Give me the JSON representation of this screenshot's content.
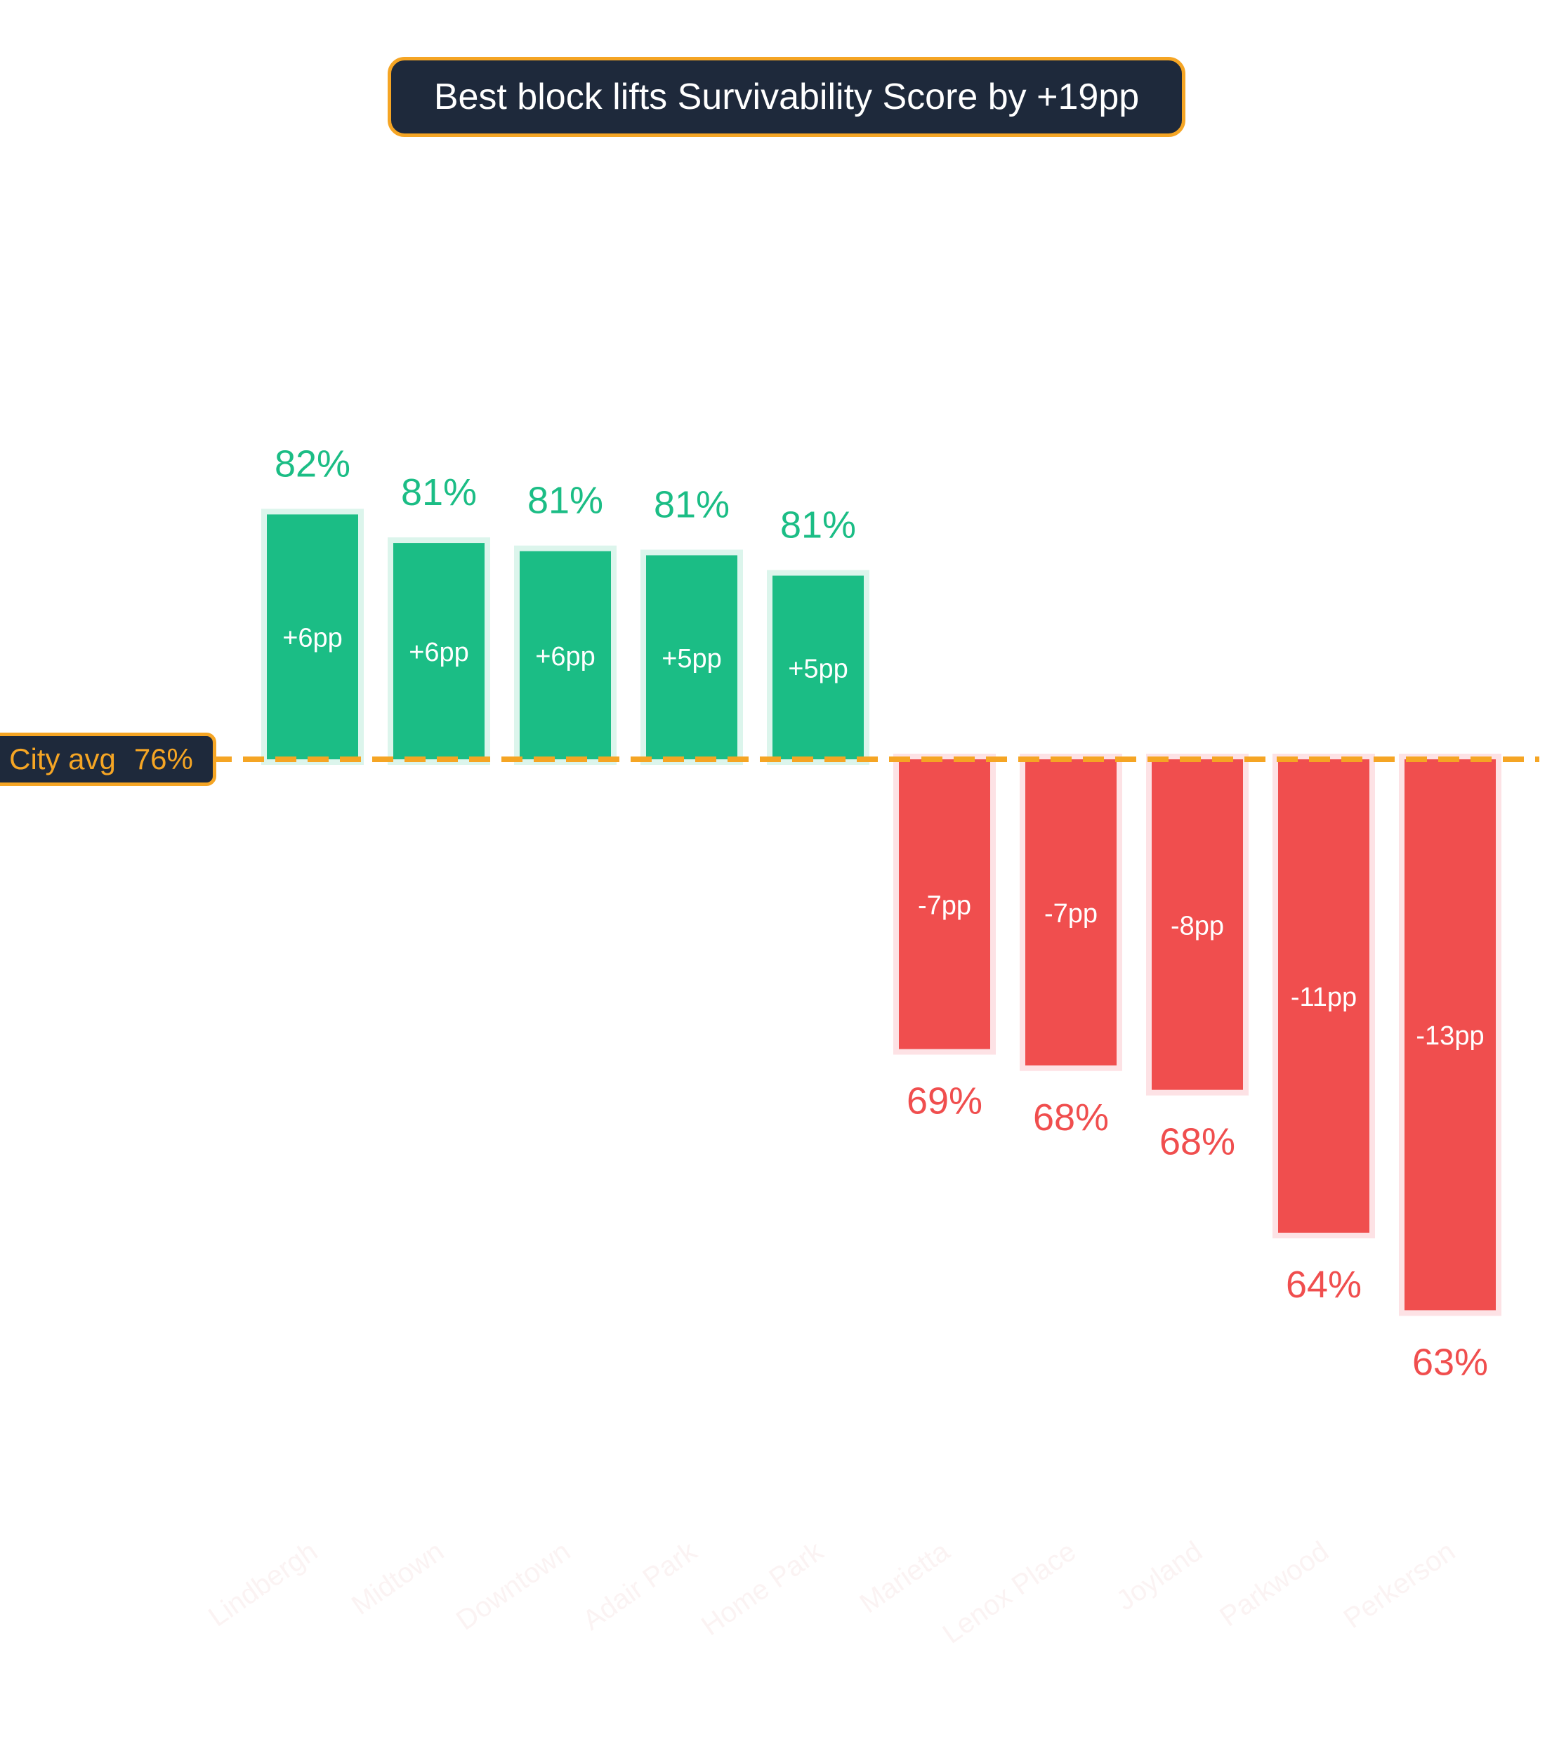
{
  "colors": {
    "positive": "#1bbd85",
    "positive_halo": "#dcf5ec",
    "negative": "#f04e4e",
    "negative_halo": "#fde2e5",
    "reference": "#f5a524",
    "badge_bg": "#1e293b",
    "category_label": "#fbf3f3"
  },
  "title": "Best block lifts Survivability Score by +19pp",
  "reference": {
    "label": "City avg",
    "value": 76,
    "value_text": "76%"
  },
  "chart_data": {
    "type": "bar",
    "title": "Best block lifts Survivability Score by +19pp",
    "xlabel": "",
    "ylabel": "",
    "baseline": 76,
    "categories": [
      "Lindbergh",
      "Midtown",
      "Downtown",
      "Adair Park",
      "Home Park",
      "Marietta",
      "Lenox Place",
      "Joyland",
      "Parkwood",
      "Perkerson"
    ],
    "values": [
      82.0,
      81.3,
      81.1,
      81.0,
      80.5,
      68.9,
      68.5,
      67.9,
      64.4,
      62.5
    ],
    "value_labels": [
      "82%",
      "81%",
      "81%",
      "81%",
      "81%",
      "69%",
      "68%",
      "68%",
      "64%",
      "63%"
    ],
    "delta_labels": [
      "+6pp",
      "+6pp",
      "+6pp",
      "+5pp",
      "+5pp",
      "-7pp",
      "-7pp",
      "-8pp",
      "-11pp",
      "-13pp"
    ],
    "grid": false,
    "legend": "none"
  }
}
